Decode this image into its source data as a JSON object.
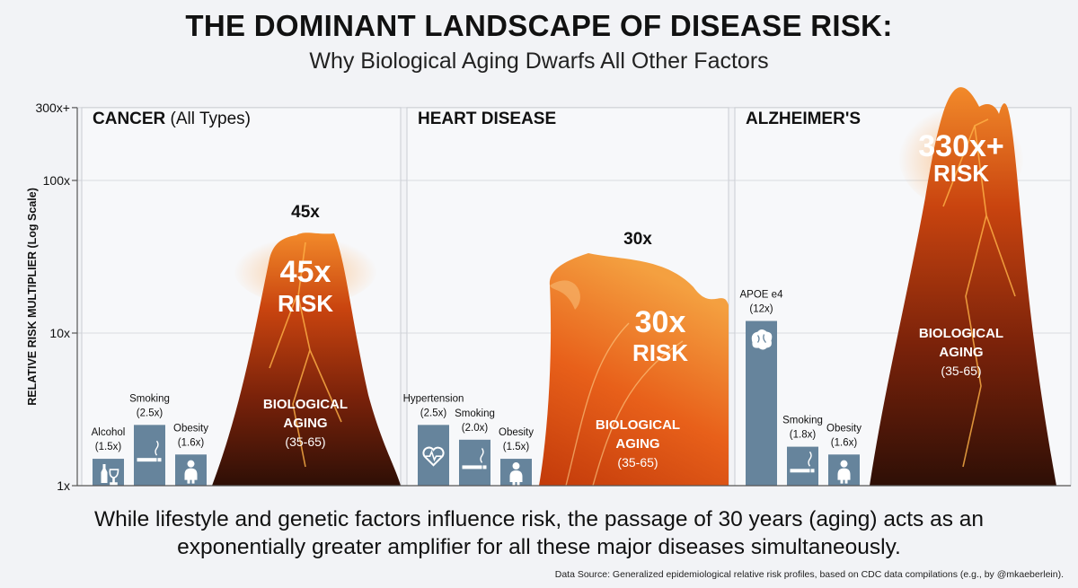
{
  "header": {
    "title": "THE DOMINANT LANDSCAPE OF DISEASE RISK:",
    "subtitle": "Why Biological Aging Dwarfs All Other Factors"
  },
  "chart_data": {
    "type": "bar",
    "ylabel": "RELATIVE RISK MULTIPLIER (Log Scale)",
    "yscale": "log",
    "ylim": [
      1,
      300
    ],
    "yticks": [
      {
        "value": 1,
        "label": "1x"
      },
      {
        "value": 10,
        "label": "10x"
      },
      {
        "value": 100,
        "label": "100x"
      },
      {
        "value": 300,
        "label": "300x+"
      }
    ],
    "grid": true,
    "panels": [
      {
        "title_bold": "CANCER",
        "title_rest": " (All Types)",
        "factors": [
          {
            "name": "Alcohol",
            "value_label": "(1.5x)",
            "value": 1.5,
            "icon": "wine-bottle-glass-icon"
          },
          {
            "name": "Smoking",
            "value_label": "(2.5x)",
            "value": 2.5,
            "icon": "cigarette-icon"
          },
          {
            "name": "Obesity",
            "value_label": "(1.6x)",
            "value": 1.6,
            "icon": "person-icon"
          }
        ],
        "aging": {
          "value": 45,
          "shape": "volcano",
          "top_label": "45x",
          "big_label": "45x",
          "risk_label": "RISK",
          "name_line1": "BIOLOGICAL",
          "name_line2": "AGING",
          "range": "(35-65)"
        }
      },
      {
        "title_bold": "HEART DISEASE",
        "title_rest": "",
        "factors": [
          {
            "name": "Hypertension",
            "value_label": "(2.5x)",
            "value": 2.5,
            "icon": "heart-pulse-icon"
          },
          {
            "name": "Smoking",
            "value_label": "(2.0x)",
            "value": 2.0,
            "icon": "cigarette-icon"
          },
          {
            "name": "Obesity",
            "value_label": "(1.5x)",
            "value": 1.5,
            "icon": "person-icon"
          }
        ],
        "aging": {
          "value": 30,
          "shape": "wave",
          "top_label": "30x",
          "big_label": "30x",
          "risk_label": "RISK",
          "name_line1": "BIOLOGICAL",
          "name_line2": "AGING",
          "range": "(35-65)"
        }
      },
      {
        "title_bold": "ALZHEIMER'S",
        "title_rest": "",
        "factors": [
          {
            "name": "APOE e4",
            "value_label": "(12x)",
            "value": 12,
            "icon": "brain-icon"
          },
          {
            "name": "Smoking",
            "value_label": "(1.8x)",
            "value": 1.8,
            "icon": "cigarette-icon"
          },
          {
            "name": "Obesity",
            "value_label": "(1.6x)",
            "value": 1.6,
            "icon": "person-icon"
          }
        ],
        "aging": {
          "value": 330,
          "shape": "mountain",
          "top_label": "",
          "big_label": "330x+",
          "risk_label": "RISK",
          "name_line1": "BIOLOGICAL",
          "name_line2": "AGING",
          "range": "(35-65)"
        }
      }
    ]
  },
  "caption": "While lifestyle and genetic factors influence risk, the passage of 30 years (aging) acts as an exponentially greater amplifier for all these major diseases simultaneously.",
  "source": "Data Source: Generalized epidemiological relative risk profiles, based on CDC data compilations (e.g., by @mkaeberlein).",
  "colors": {
    "factor_bar": "#66849c",
    "lava_dark": "#3a1308",
    "lava_mid": "#b83a0c",
    "lava_bright": "#f57a1c",
    "panel_border": "#c9ccd2"
  }
}
